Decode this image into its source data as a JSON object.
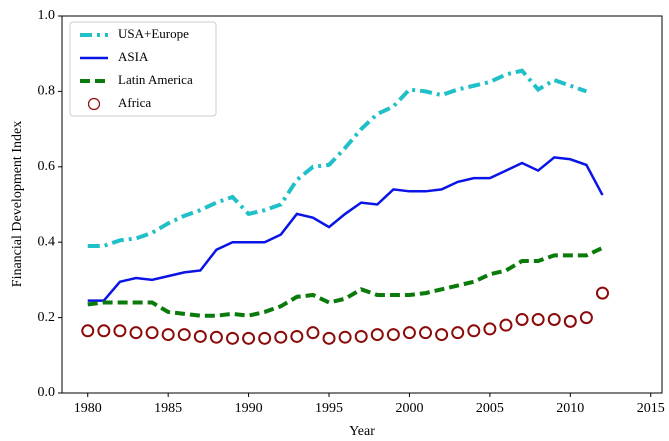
{
  "chart_data": {
    "type": "line",
    "xlabel": "Year",
    "ylabel": "Financial Development Index",
    "x": [
      1980,
      1981,
      1982,
      1983,
      1984,
      1985,
      1986,
      1987,
      1988,
      1989,
      1990,
      1991,
      1992,
      1993,
      1994,
      1995,
      1996,
      1997,
      1998,
      1999,
      2000,
      2001,
      2002,
      2003,
      2004,
      2005,
      2006,
      2007,
      2008,
      2009,
      2010,
      2011,
      2012
    ],
    "series": [
      {
        "name": "USA+Europe",
        "color": "#20c0c8",
        "style": "dashdot",
        "values": [
          0.39,
          0.39,
          0.405,
          0.41,
          0.425,
          0.45,
          0.47,
          0.485,
          0.505,
          0.52,
          0.475,
          0.485,
          0.5,
          0.565,
          0.6,
          0.605,
          0.65,
          0.7,
          0.74,
          0.76,
          0.805,
          0.8,
          0.79,
          0.805,
          0.815,
          0.825,
          0.845,
          0.855,
          0.805,
          0.83,
          0.815,
          0.8,
          null
        ]
      },
      {
        "name": "ASIA",
        "color": "#0a14e6",
        "style": "solid",
        "values": [
          0.245,
          0.245,
          0.295,
          0.305,
          0.3,
          0.31,
          0.32,
          0.325,
          0.38,
          0.4,
          0.4,
          0.4,
          0.42,
          0.475,
          0.465,
          0.44,
          0.475,
          0.505,
          0.5,
          0.54,
          0.535,
          0.535,
          0.54,
          0.56,
          0.57,
          0.57,
          0.59,
          0.61,
          0.59,
          0.625,
          0.62,
          0.605,
          0.525
        ]
      },
      {
        "name": "Latin America",
        "color": "#0a7a0a",
        "style": "dashed",
        "values": [
          0.235,
          0.24,
          0.24,
          0.24,
          0.24,
          0.215,
          0.21,
          0.205,
          0.205,
          0.21,
          0.205,
          0.215,
          0.23,
          0.255,
          0.26,
          0.24,
          0.25,
          0.275,
          0.26,
          0.26,
          0.26,
          0.265,
          0.275,
          0.285,
          0.295,
          0.315,
          0.325,
          0.35,
          0.35,
          0.365,
          0.365,
          0.365,
          0.385
        ]
      },
      {
        "name": "Africa",
        "color": "#8b0a0a",
        "style": "markers",
        "values": [
          0.165,
          0.165,
          0.165,
          0.16,
          0.16,
          0.155,
          0.155,
          0.15,
          0.148,
          0.145,
          0.145,
          0.145,
          0.148,
          0.15,
          0.16,
          0.145,
          0.148,
          0.15,
          0.155,
          0.155,
          0.16,
          0.16,
          0.155,
          0.16,
          0.165,
          0.17,
          0.18,
          0.195,
          0.195,
          0.195,
          0.19,
          0.2,
          0.265
        ]
      }
    ],
    "xlim": [
      1978.4,
      2015.7
    ],
    "xticks": [
      1980,
      1985,
      1990,
      1995,
      2000,
      2005,
      2010,
      2015
    ],
    "ylim": [
      0,
      1
    ],
    "yticks": [
      {
        "value": 0,
        "label": "0.0"
      },
      0.2,
      0.4,
      0.6,
      0.8,
      {
        "value": 1,
        "label": "1.0"
      }
    ],
    "legend": "upper left"
  }
}
